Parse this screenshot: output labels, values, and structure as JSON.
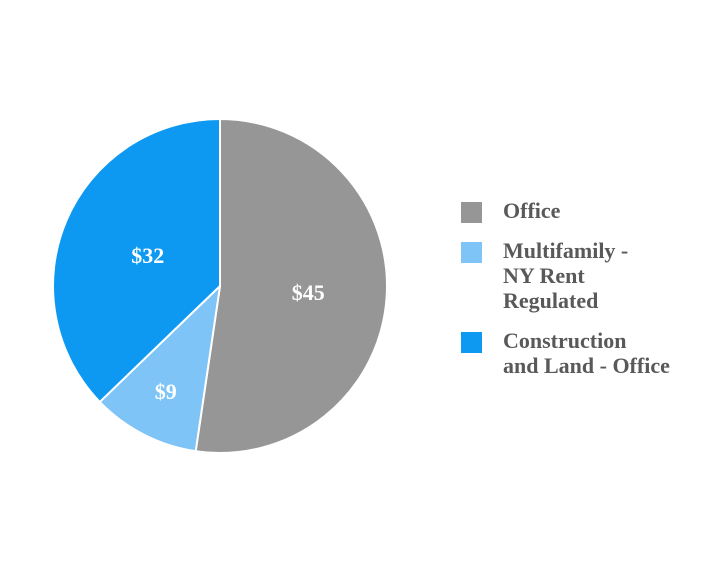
{
  "chart_data": {
    "type": "pie",
    "start_angle_deg": 0,
    "direction": "clockwise",
    "total": 86,
    "slices": [
      {
        "label": "Office",
        "value": 45,
        "data_label": "$45",
        "color": "#969696"
      },
      {
        "label": "Multifamily - NY Rent Regulated",
        "value": 9,
        "data_label": "$9",
        "color": "#7EC4F7"
      },
      {
        "label": "Construction and Land - Office",
        "value": 32,
        "data_label": "$32",
        "color": "#0D99F2"
      }
    ],
    "data_label_color": "#FFFFFF",
    "separator_color": "#FFFFFF",
    "legend_position": "right",
    "background": "#FFFFFF"
  },
  "legend": {
    "text_color": "#595959",
    "items": [
      {
        "color": "#969696",
        "lines": [
          "Office"
        ]
      },
      {
        "color": "#7EC4F7",
        "lines": [
          "Multifamily -",
          "NY Rent",
          "Regulated"
        ]
      },
      {
        "color": "#0D99F2",
        "lines": [
          "Construction",
          "and Land - Office"
        ]
      }
    ]
  }
}
